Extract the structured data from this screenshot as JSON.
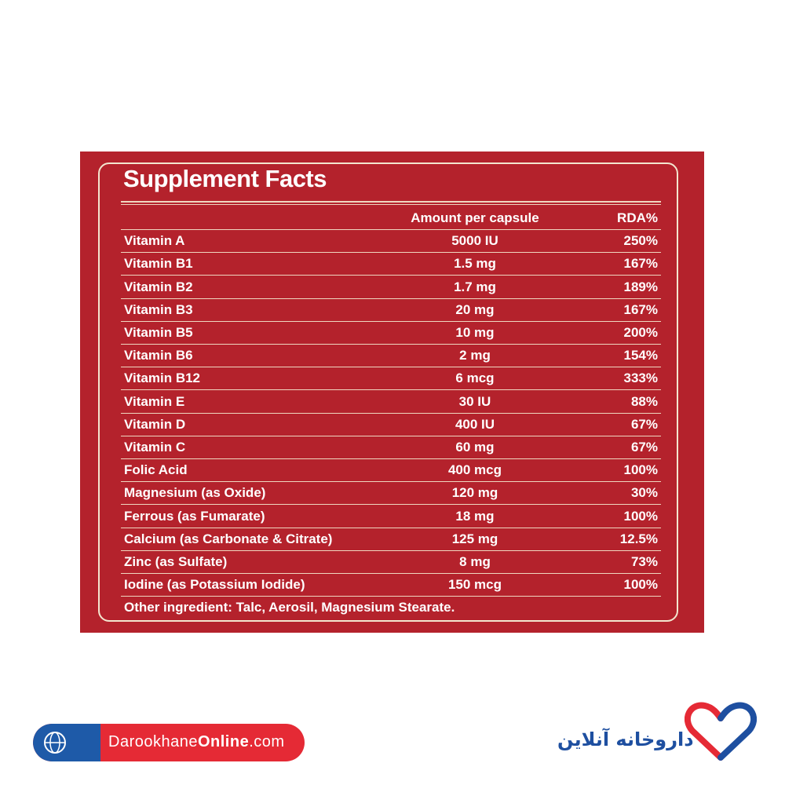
{
  "panel": {
    "title": "Supplement Facts",
    "table": {
      "header": [
        "Amount per capsule",
        "RDA%"
      ],
      "rows": [
        [
          "Vitamin A",
          "5000 IU",
          "250%"
        ],
        [
          "Vitamin B1",
          "1.5 mg",
          "167%"
        ],
        [
          "Vitamin B2",
          "1.7 mg",
          "189%"
        ],
        [
          "Vitamin B3",
          "20 mg",
          "167%"
        ],
        [
          "Vitamin B5",
          "10 mg",
          "200%"
        ],
        [
          "Vitamin B6",
          "2 mg",
          "154%"
        ],
        [
          "Vitamin B12",
          "6 mcg",
          "333%"
        ],
        [
          "Vitamin E",
          "30 IU",
          "88%"
        ],
        [
          "Vitamin D",
          "400 IU",
          "67%"
        ],
        [
          "Vitamin C",
          "60 mg",
          "67%"
        ],
        [
          "Folic Acid",
          "400 mcg",
          "100%"
        ],
        [
          "Magnesium (as Oxide)",
          "120 mg",
          "30%"
        ],
        [
          "Ferrous (as Fumarate)",
          "18 mg",
          "100%"
        ],
        [
          "Calcium (as Carbonate & Citrate)",
          "125 mg",
          "12.5%"
        ],
        [
          "Zinc (as Sulfate)",
          "8 mg",
          "73%"
        ],
        [
          "Iodine (as Potassium Iodide)",
          "150 mcg",
          "100%"
        ]
      ]
    },
    "footnote": "Other ingredient: Talc, Aerosil, Magnesium Stearate."
  },
  "brand": {
    "site_parts": [
      "Darookhane",
      "Online",
      ".com"
    ],
    "name_fa": "داروخانه آنلاین"
  }
}
